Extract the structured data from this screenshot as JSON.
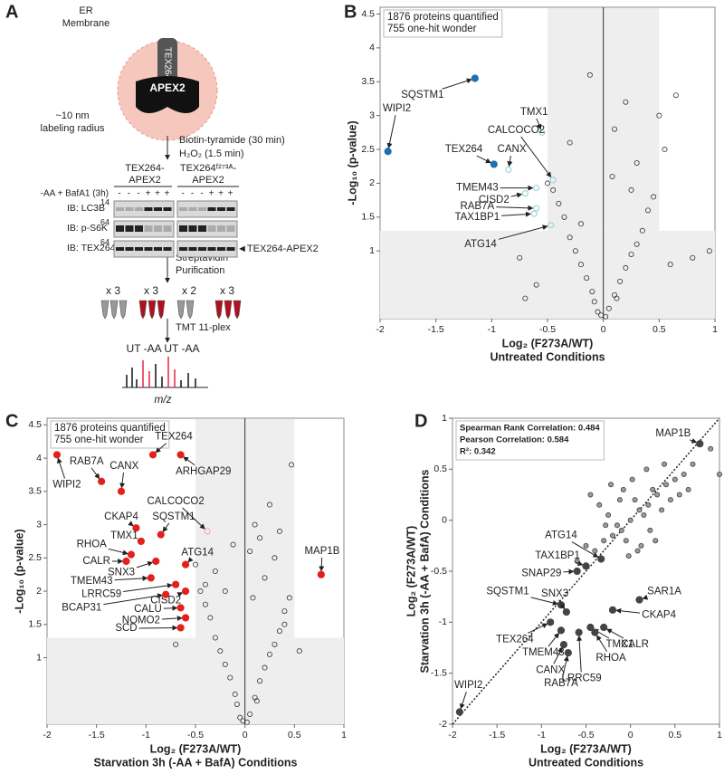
{
  "diagram": {
    "panel": "A",
    "membrane": [
      "ER",
      "Membrane"
    ],
    "bait": "TEX264",
    "enzyme": "APEX2",
    "radius": [
      "~10 nm",
      "labeling radius"
    ],
    "step1": [
      "Biotin-tyramide (30 min)",
      "H₂O₂ (1.5 min)"
    ],
    "blot": {
      "columns": [
        [
          "TEX264-",
          "APEX2"
        ],
        [
          "TEX264ᶠ²⁷³ᴬ-",
          "APEX2"
        ]
      ],
      "condition": "-AA + BafA1 (3h)",
      "signs": [
        "-",
        "-",
        "-",
        "+",
        "+",
        "+",
        "-",
        "-",
        "-",
        "+",
        "+",
        "+"
      ],
      "rows": [
        {
          "label": "IB: LC3B",
          "mw": "14"
        },
        {
          "label": "IB: p-S6K",
          "mw": "64"
        },
        {
          "label": "IB: TEX264",
          "mw": "64"
        }
      ],
      "band_label": "◄TEX264-APEX2"
    },
    "step2": [
      "Streptavidin",
      "Purification"
    ],
    "replicates": [
      "x 3",
      "x 3",
      "x 2",
      "x 3"
    ],
    "step3": "TMT 11-plex",
    "spectrum_labels": "UT -AA UT -AA",
    "axis": "m/z"
  },
  "chart_data": [
    {
      "type": "scatter",
      "panel": "B",
      "box_text": [
        "1876 proteins quantified",
        "755 one-hit wonder"
      ],
      "xlabel": [
        "Log₂ (F273A/WT)",
        "Untreated Conditions"
      ],
      "ylabel": [
        "-Log₁₀ (p-value)"
      ],
      "xlim": [
        -2,
        1
      ],
      "ylim": [
        0,
        4.6
      ],
      "xticks": [
        -2,
        -1.5,
        -1,
        -0.5,
        0,
        0.5,
        1
      ],
      "yticks": [
        1,
        1.5,
        2,
        2.5,
        3,
        3.5,
        4,
        4.5
      ],
      "zero_line": true,
      "shade": {
        "x": [
          -0.5,
          0.5
        ],
        "y": 1.3
      },
      "series": [
        {
          "color": "#333333",
          "filled": false,
          "x": [
            -0.05,
            0.05,
            -0.1,
            0.1,
            -0.15,
            0.15,
            -0.2,
            0.2,
            -0.25,
            0.25,
            -0.3,
            0.3,
            -0.35,
            0.35,
            -0.4,
            0.4,
            -0.02,
            0.02,
            -0.08,
            0.12,
            -0.45,
            0.45,
            0.6,
            0.8,
            -0.6,
            -0.7,
            0.3,
            0.1,
            -0.3,
            0.5,
            0.55,
            -0.5,
            0.2,
            -0.12,
            0.08,
            0.95,
            -0.75,
            0.65,
            -0.2,
            0.25
          ],
          "values": [
            0.1,
            0.15,
            0.4,
            0.35,
            0.6,
            0.55,
            0.8,
            0.75,
            1.0,
            0.95,
            1.2,
            1.1,
            1.5,
            1.3,
            1.7,
            1.6,
            0.05,
            0.03,
            0.25,
            0.3,
            1.9,
            1.8,
            0.8,
            0.9,
            0.5,
            0.3,
            2.3,
            2.8,
            2.6,
            3.0,
            2.5,
            2.0,
            3.2,
            3.6,
            2.1,
            1.0,
            0.9,
            3.3,
            1.4,
            1.9
          ]
        }
      ],
      "points": [
        {
          "label": "SQSTM1",
          "x": -1.15,
          "y": 3.55,
          "color": "#1f6fb2",
          "filled": true
        },
        {
          "label": "WIPI2",
          "x": -1.93,
          "y": 2.47,
          "color": "#1f6fb2",
          "filled": true
        },
        {
          "label": "TEX264",
          "x": -0.98,
          "y": 2.28,
          "color": "#1f6fb2",
          "filled": true
        },
        {
          "label": "CANX",
          "x": -0.85,
          "y": 2.2,
          "color": "#8ccfda",
          "filled": false
        },
        {
          "label": "TMX1",
          "x": -0.55,
          "y": 2.75,
          "color": "#8ccfda",
          "filled": false
        },
        {
          "label": "CALCOCO2",
          "x": -0.45,
          "y": 2.05,
          "color": "#8ccfda",
          "filled": false
        },
        {
          "label": "TMEM43",
          "x": -0.6,
          "y": 1.93,
          "color": "#8ccfda",
          "filled": false
        },
        {
          "label": "CISD2",
          "x": -0.7,
          "y": 1.85,
          "color": "#8ccfda",
          "filled": false
        },
        {
          "label": "RAB7A",
          "x": -0.6,
          "y": 1.63,
          "color": "#8ccfda",
          "filled": false
        },
        {
          "label": "TAX1BP1",
          "x": -0.62,
          "y": 1.55,
          "color": "#8ccfda",
          "filled": false
        },
        {
          "label": "ATG14",
          "x": -0.47,
          "y": 1.38,
          "color": "#8ccfda",
          "filled": false
        }
      ]
    },
    {
      "type": "scatter",
      "panel": "C",
      "box_text": [
        "1876 proteins quantified",
        "755 one-hit wonder"
      ],
      "xlabel": [
        "Log₂ (F273A/WT)",
        "Starvation 3h (-AA + BafA) Conditions"
      ],
      "ylabel": [
        "-Log₁₀ (p-value)"
      ],
      "xlim": [
        -2,
        1
      ],
      "ylim": [
        0,
        4.6
      ],
      "xticks": [
        -2,
        -1.5,
        -1,
        -0.5,
        0,
        0.5,
        1
      ],
      "yticks": [
        1,
        1.5,
        2,
        2.5,
        3,
        3.5,
        4,
        4.5
      ],
      "zero_line": true,
      "shade": {
        "x": [
          -0.5,
          0.5
        ],
        "y": 1.3
      },
      "series": [
        {
          "color": "#333333",
          "filled": false,
          "x": [
            -0.05,
            0.05,
            -0.1,
            0.1,
            -0.15,
            0.15,
            -0.2,
            0.2,
            -0.25,
            0.25,
            -0.3,
            0.3,
            -0.35,
            0.35,
            -0.4,
            0.4,
            -0.02,
            0.02,
            -0.08,
            0.12,
            -0.45,
            0.45,
            0.47,
            0.3,
            -0.6,
            -0.7,
            0.15,
            0.1,
            -0.3,
            0.35,
            0.05,
            -0.5,
            0.2,
            -0.12,
            0.08,
            0.55,
            -0.4,
            0.25,
            -0.2,
            0.4
          ],
          "values": [
            0.1,
            0.15,
            0.45,
            0.4,
            0.7,
            0.65,
            0.9,
            0.85,
            1.1,
            1.05,
            1.3,
            1.2,
            1.6,
            1.4,
            1.8,
            1.7,
            0.05,
            0.03,
            0.3,
            0.35,
            2.0,
            1.9,
            3.9,
            2.5,
            1.6,
            1.2,
            2.8,
            3.0,
            2.3,
            2.9,
            2.6,
            2.4,
            2.2,
            2.7,
            1.9,
            1.1,
            2.1,
            3.3,
            2.0,
            1.5
          ]
        }
      ],
      "points": [
        {
          "label": "TEX264",
          "x": -0.93,
          "y": 4.05,
          "color": "#e3201c",
          "filled": true
        },
        {
          "label": "ARHGAP29",
          "x": -0.65,
          "y": 4.05,
          "color": "#e3201c",
          "filled": true
        },
        {
          "label": "WIPI2",
          "x": -1.9,
          "y": 4.05,
          "color": "#e3201c",
          "filled": true
        },
        {
          "label": "RAB7A",
          "x": -1.45,
          "y": 3.65,
          "color": "#e3201c",
          "filled": true
        },
        {
          "label": "CANX",
          "x": -1.25,
          "y": 3.5,
          "color": "#e3201c",
          "filled": true
        },
        {
          "label": "CALCOCO2",
          "x": -0.38,
          "y": 2.9,
          "color": "#f4a3a3",
          "filled": false
        },
        {
          "label": "SQSTM1",
          "x": -0.85,
          "y": 2.85,
          "color": "#e3201c",
          "filled": true
        },
        {
          "label": "CKAP4",
          "x": -1.1,
          "y": 2.95,
          "color": "#e3201c",
          "filled": true
        },
        {
          "label": "TMX1",
          "x": -1.05,
          "y": 2.75,
          "color": "#e3201c",
          "filled": true
        },
        {
          "label": "RHOA",
          "x": -1.15,
          "y": 2.55,
          "color": "#e3201c",
          "filled": true
        },
        {
          "label": "CALR",
          "x": -1.2,
          "y": 2.45,
          "color": "#e3201c",
          "filled": true
        },
        {
          "label": "SNX3",
          "x": -0.9,
          "y": 2.45,
          "color": "#e3201c",
          "filled": true
        },
        {
          "label": "ATG14",
          "x": -0.6,
          "y": 2.4,
          "color": "#e3201c",
          "filled": true
        },
        {
          "label": "TMEM43",
          "x": -0.95,
          "y": 2.2,
          "color": "#e3201c",
          "filled": true
        },
        {
          "label": "LRRC59",
          "x": -0.7,
          "y": 2.1,
          "color": "#e3201c",
          "filled": true
        },
        {
          "label": "CISD2",
          "x": -0.6,
          "y": 2.0,
          "color": "#e3201c",
          "filled": true
        },
        {
          "label": "BCAP31",
          "x": -0.8,
          "y": 1.95,
          "color": "#e3201c",
          "filled": true
        },
        {
          "label": "CALU",
          "x": -0.65,
          "y": 1.75,
          "color": "#e3201c",
          "filled": true
        },
        {
          "label": "NOMO2",
          "x": -0.6,
          "y": 1.6,
          "color": "#e3201c",
          "filled": true
        },
        {
          "label": "SCD",
          "x": -0.65,
          "y": 1.45,
          "color": "#e3201c",
          "filled": true
        },
        {
          "label": "MAP1B",
          "x": 0.77,
          "y": 2.25,
          "color": "#e3201c",
          "filled": true
        }
      ]
    },
    {
      "type": "scatter",
      "panel": "D",
      "box_text": [
        "Spearman Rank Correlation: 0.484",
        "Pearson Correlation: 0.584",
        "R²: 0.342"
      ],
      "xlabel": [
        "Log₂ (F273A/WT)",
        "Untreated Conditions"
      ],
      "ylabel": [
        "Log₂ (F273A/WT)",
        "Starvation 3h (-AA + BafA) Conditions"
      ],
      "xlim": [
        -2,
        1
      ],
      "ylim": [
        -2,
        1
      ],
      "xticks": [
        -2,
        -1.5,
        -1,
        -0.5,
        0,
        0.5,
        1
      ],
      "yticks": [
        -2,
        -1.5,
        -1,
        -0.5,
        0,
        0.5,
        1
      ],
      "diagonal": true,
      "series": [
        {
          "color": "#444444",
          "filled": true,
          "x": [
            0,
            0.1,
            -0.1,
            0.2,
            -0.2,
            0.05,
            -0.05,
            0.15,
            -0.15,
            0.3,
            -0.3,
            0.25,
            -0.25,
            0.4,
            -0.4,
            0.35,
            0.5,
            -0.5,
            0.45,
            0.6,
            0.08,
            -0.08,
            0.12,
            -0.12,
            0.22,
            -0.22,
            0.18,
            -0.35,
            0.55,
            0.7,
            0.02,
            -0.02,
            0.28,
            -0.28,
            0.38,
            -0.6,
            0.65,
            0.9,
            1.0,
            -0.45
          ],
          "values": [
            0,
            0.1,
            -0.1,
            0.15,
            -0.15,
            0.2,
            -0.2,
            0.05,
            -0.05,
            0.25,
            -0.2,
            0.3,
            0.05,
            0.35,
            -0.3,
            0.1,
            0.4,
            -0.25,
            0.2,
            0.45,
            -0.3,
            0.3,
            -0.25,
            0.2,
            -0.1,
            0.35,
            0.5,
            0.15,
            0.25,
            0.55,
            0.4,
            -0.35,
            -0.2,
            -0.05,
            0.55,
            -0.4,
            0.3,
            0.7,
            0.45,
            0.25
          ]
        }
      ],
      "points": [
        {
          "label": "MAP1B",
          "x": 0.78,
          "y": 0.75,
          "color": "#444444",
          "filled": true
        },
        {
          "label": "ATG14",
          "x": -0.33,
          "y": -0.38,
          "color": "#444444",
          "filled": true
        },
        {
          "label": "TAX1BP1",
          "x": -0.5,
          "y": -0.45,
          "color": "#444444",
          "filled": true
        },
        {
          "label": "SNAP29",
          "x": -0.6,
          "y": -0.5,
          "color": "#444444",
          "filled": true
        },
        {
          "label": "SQSTM1",
          "x": -0.78,
          "y": -0.83,
          "color": "#444444",
          "filled": true
        },
        {
          "label": "SNX3",
          "x": -0.72,
          "y": -0.9,
          "color": "#444444",
          "filled": true
        },
        {
          "label": "TEX264",
          "x": -0.9,
          "y": -1.0,
          "color": "#444444",
          "filled": true
        },
        {
          "label": "SAR1A",
          "x": 0.1,
          "y": -0.78,
          "color": "#444444",
          "filled": true
        },
        {
          "label": "CKAP4",
          "x": -0.2,
          "y": -0.88,
          "color": "#444444",
          "filled": true
        },
        {
          "label": "TMX1",
          "x": -0.45,
          "y": -1.05,
          "color": "#444444",
          "filled": true
        },
        {
          "label": "CALR",
          "x": -0.3,
          "y": -1.05,
          "color": "#444444",
          "filled": true
        },
        {
          "label": "RHOA",
          "x": -0.4,
          "y": -1.1,
          "color": "#444444",
          "filled": true
        },
        {
          "label": "TMEM43",
          "x": -0.78,
          "y": -1.08,
          "color": "#444444",
          "filled": true
        },
        {
          "label": "CANX",
          "x": -0.75,
          "y": -1.22,
          "color": "#444444",
          "filled": true
        },
        {
          "label": "LRRC59",
          "x": -0.58,
          "y": -1.1,
          "color": "#444444",
          "filled": true
        },
        {
          "label": "RAB7A",
          "x": -0.7,
          "y": -1.3,
          "color": "#444444",
          "filled": true
        },
        {
          "label": "WIPI2",
          "x": -1.92,
          "y": -1.88,
          "color": "#444444",
          "filled": true
        }
      ]
    }
  ]
}
